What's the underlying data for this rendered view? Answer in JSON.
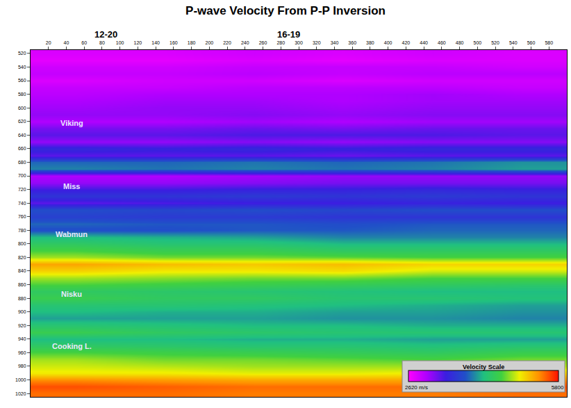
{
  "chart_data": {
    "type": "heatmap",
    "title": "P-wave Velocity From P-P Inversion",
    "grid": false,
    "x": [
      50,
      150,
      250,
      350,
      450,
      550
    ],
    "y": [
      520,
      530,
      540,
      550,
      560,
      570,
      580,
      590,
      600,
      610,
      620,
      630,
      640,
      650,
      660,
      670,
      680,
      690,
      700,
      710,
      720,
      730,
      740,
      750,
      760,
      770,
      780,
      790,
      800,
      810,
      820,
      830,
      840,
      850,
      860,
      870,
      880,
      890,
      900,
      910,
      920,
      930,
      940,
      950,
      960,
      970,
      980,
      990,
      1000,
      1010,
      1020
    ],
    "z": [
      [
        2800,
        2800,
        2850,
        2800,
        2850,
        2800
      ],
      [
        2750,
        2750,
        2800,
        2750,
        2800,
        2800
      ],
      [
        2850,
        2850,
        2900,
        2900,
        2900,
        2850
      ],
      [
        2900,
        2900,
        2950,
        2900,
        2950,
        2950
      ],
      [
        2800,
        2850,
        2850,
        2800,
        2850,
        2850
      ],
      [
        2900,
        2900,
        2950,
        2950,
        2950,
        2900
      ],
      [
        2950,
        3000,
        3000,
        3000,
        3050,
        3000
      ],
      [
        3000,
        3050,
        3050,
        3000,
        3050,
        3050
      ],
      [
        3050,
        3100,
        3100,
        3050,
        3100,
        3100
      ],
      [
        3100,
        3100,
        3150,
        3100,
        3150,
        3150
      ],
      [
        3000,
        3000,
        3050,
        3000,
        3050,
        3050
      ],
      [
        3200,
        3200,
        3250,
        3200,
        3250,
        3250
      ],
      [
        3300,
        3300,
        3350,
        3350,
        3350,
        3300
      ],
      [
        3100,
        3100,
        3150,
        3100,
        3150,
        3150
      ],
      [
        3500,
        3450,
        3500,
        3450,
        3500,
        3500
      ],
      [
        3300,
        3300,
        3300,
        3250,
        3300,
        3300
      ],
      [
        3900,
        3900,
        3950,
        3900,
        3950,
        4050
      ],
      [
        4000,
        3950,
        4000,
        3950,
        4000,
        4100
      ],
      [
        3000,
        3000,
        3050,
        3100,
        3100,
        3100
      ],
      [
        3100,
        3100,
        3150,
        3200,
        3200,
        3200
      ],
      [
        3400,
        3400,
        3450,
        3450,
        3500,
        3450
      ],
      [
        3600,
        3600,
        3650,
        3600,
        3650,
        3600
      ],
      [
        3300,
        3350,
        3400,
        3400,
        3450,
        3400
      ],
      [
        3800,
        3750,
        3800,
        3750,
        3800,
        3800
      ],
      [
        3700,
        3650,
        3650,
        3600,
        3600,
        3600
      ],
      [
        3900,
        3850,
        3850,
        3800,
        3850,
        3850
      ],
      [
        3800,
        3800,
        3850,
        3850,
        3900,
        3900
      ],
      [
        4200,
        4150,
        4100,
        4000,
        4000,
        4000
      ],
      [
        4400,
        4300,
        4300,
        4200,
        4200,
        4200
      ],
      [
        4600,
        4500,
        4500,
        4400,
        4400,
        4400
      ],
      [
        4800,
        4700,
        4700,
        4650,
        4600,
        4600
      ],
      [
        5300,
        5200,
        5150,
        5200,
        5100,
        5100
      ],
      [
        5100,
        5000,
        5000,
        5050,
        4900,
        4900
      ],
      [
        4800,
        4750,
        4700,
        4700,
        4600,
        4600
      ],
      [
        4600,
        4550,
        4500,
        4450,
        4400,
        4350
      ],
      [
        4400,
        4350,
        4300,
        4250,
        4200,
        4200
      ],
      [
        4500,
        4400,
        4400,
        4300,
        4300,
        4250
      ],
      [
        4300,
        4300,
        4250,
        4200,
        4150,
        4100
      ],
      [
        4200,
        4150,
        4150,
        4100,
        4100,
        4050
      ],
      [
        4100,
        4100,
        4100,
        4050,
        4050,
        4000
      ],
      [
        4300,
        4250,
        4200,
        4200,
        4150,
        4150
      ],
      [
        4500,
        4400,
        4350,
        4300,
        4300,
        4300
      ],
      [
        4200,
        4200,
        4150,
        4150,
        4100,
        4100
      ],
      [
        4400,
        4350,
        4300,
        4300,
        4250,
        4300
      ],
      [
        4600,
        4550,
        4500,
        4450,
        4400,
        4500
      ],
      [
        4800,
        4700,
        4700,
        4650,
        4600,
        4700
      ],
      [
        4900,
        4850,
        4800,
        4800,
        4800,
        4850
      ],
      [
        5000,
        5000,
        4950,
        4950,
        5000,
        5100
      ],
      [
        5400,
        5350,
        5300,
        5300,
        5300,
        5400
      ],
      [
        5600,
        5550,
        5500,
        5500,
        5500,
        5600
      ],
      [
        5500,
        5500,
        5450,
        5450,
        5450,
        5500
      ]
    ],
    "xlim": [
      0,
      600
    ],
    "ylim": [
      1025,
      515
    ],
    "xticks": [
      20,
      40,
      60,
      80,
      100,
      120,
      140,
      160,
      180,
      200,
      220,
      240,
      260,
      280,
      300,
      320,
      340,
      360,
      380,
      400,
      420,
      440,
      460,
      480,
      500,
      520,
      540,
      560,
      580
    ],
    "yticks": [
      520,
      540,
      560,
      580,
      600,
      620,
      640,
      660,
      680,
      700,
      720,
      740,
      760,
      780,
      800,
      820,
      840,
      860,
      880,
      900,
      920,
      940,
      960,
      980,
      1000,
      1020
    ],
    "colorbar": {
      "title": "Velocity Scale",
      "range": [
        2620,
        5800
      ],
      "ticks": [
        {
          "value": 2620,
          "label": "2620 m/s"
        },
        5800
      ]
    },
    "wells": [
      {
        "name": "12-20",
        "x": 84
      },
      {
        "name": "16-19",
        "x": 289
      }
    ],
    "annotations": [
      {
        "text": "Viking",
        "x": 46,
        "y": 622
      },
      {
        "text": "Miss",
        "x": 46,
        "y": 715
      },
      {
        "text": "Wabmun",
        "x": 46,
        "y": 786
      },
      {
        "text": "Nisku",
        "x": 46,
        "y": 874
      },
      {
        "text": "Cooking L.",
        "x": 46,
        "y": 950
      }
    ]
  }
}
